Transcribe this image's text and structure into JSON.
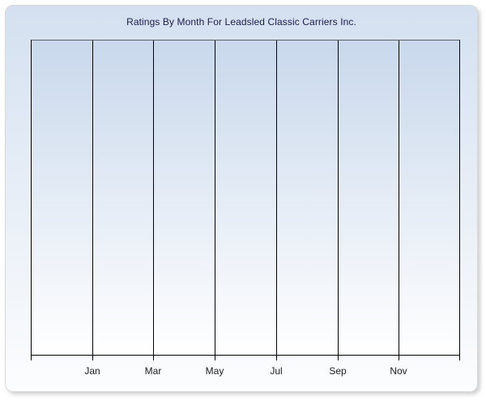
{
  "chart_data": {
    "type": "line",
    "title": "Ratings By Month For Leadsled Classic Carriers Inc.",
    "x_tick_labels": [
      "Jan",
      "Mar",
      "May",
      "Jul",
      "Sep",
      "Nov"
    ],
    "series": [],
    "xlabel": "",
    "ylabel": "",
    "y_tick_labels": [],
    "grid": "vertical-only",
    "legend": "none"
  },
  "colors": {
    "panel_gradient_top": "#d4e0f0",
    "panel_gradient_bottom": "#fcfdfe",
    "plot_gradient_top": "#c9d8ec",
    "plot_gradient_bottom": "#ffffff",
    "title_text": "#1b1b4f",
    "axis_line": "#000000",
    "plot_top_border": "#5f5f5f",
    "tick_label_text": "#202020",
    "panel_border": "#d9d9d9"
  }
}
